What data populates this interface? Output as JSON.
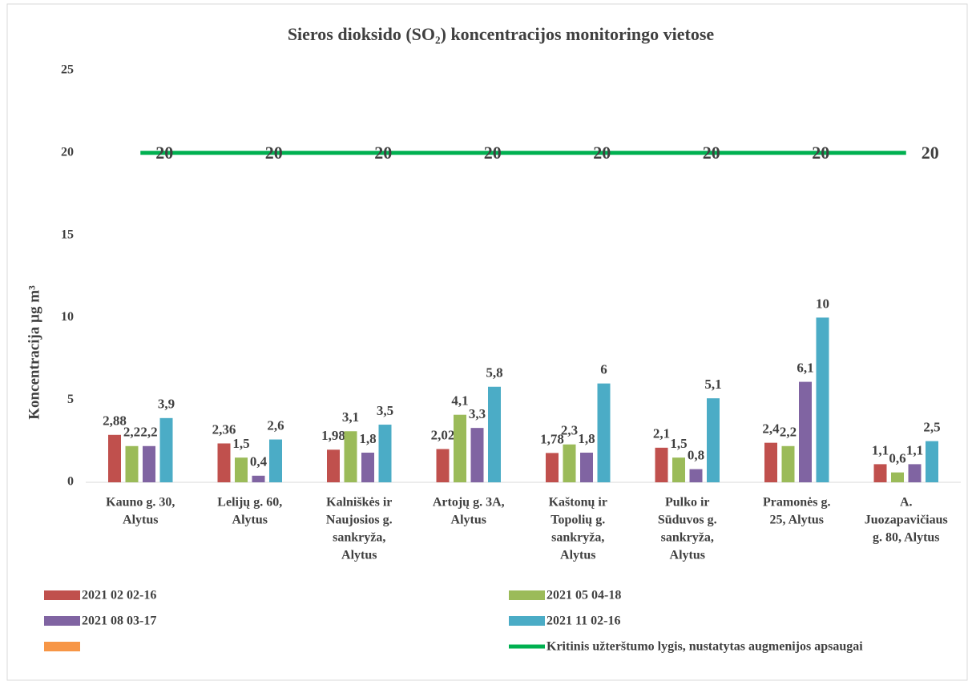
{
  "chart_data": {
    "type": "bar",
    "title": "Sieros dioksido (SO₂) koncentracijos monitoringo vietose",
    "y_label": "Koncentracija µg m³",
    "categories": [
      [
        "Kauno g. 30,",
        "Alytus"
      ],
      [
        "Lelijų g. 60,",
        "Alytus"
      ],
      [
        "Kalniškės ir",
        "Naujosios g.",
        "sankryža,",
        "Alytus"
      ],
      [
        "Artojų g. 3A,",
        "Alytus"
      ],
      [
        "Kaštonų ir",
        "Topolių g.",
        "sankryža,",
        "Alytus"
      ],
      [
        "Pulko ir",
        "Sūduvos g.",
        "sankryža,",
        "Alytus"
      ],
      [
        "Pramonės g.",
        "25, Alytus"
      ],
      [
        "A.",
        "Juozapavičiaus",
        "g. 80, Alytus"
      ]
    ],
    "series": [
      {
        "name": "2021 02 02-16",
        "color": "#C0504D",
        "values": [
          2.88,
          2.36,
          1.98,
          2.02,
          1.78,
          2.1,
          2.4,
          1.1
        ],
        "value_labels": [
          "2,88",
          "2,36",
          "1,98",
          "2,02",
          "1,78",
          "2,1",
          "2,4",
          "1,1"
        ]
      },
      {
        "name": "2021 05 04-18",
        "color": "#9BBB59",
        "values": [
          2.2,
          1.5,
          3.1,
          4.1,
          2.3,
          1.5,
          2.2,
          0.6
        ],
        "value_labels": [
          "2,2",
          "1,5",
          "3,1",
          "4,1",
          "2,3",
          "1,5",
          "2,2",
          "0,6"
        ]
      },
      {
        "name": "2021 08 03-17",
        "color": "#8064A2",
        "values": [
          2.2,
          0.4,
          1.8,
          3.3,
          1.8,
          0.8,
          6.1,
          1.1
        ],
        "value_labels": [
          "2,2",
          "0,4",
          "1,8",
          "3,3",
          "1,8",
          "0,8",
          "6,1",
          "1,1"
        ]
      },
      {
        "name": "2021 11 02-16",
        "color": "#4BACC6",
        "values": [
          3.9,
          2.6,
          3.5,
          5.8,
          6,
          5.1,
          10,
          2.5
        ],
        "value_labels": [
          "3,9",
          "2,6",
          "3,5",
          "5,8",
          "6",
          "5,1",
          "10",
          "2,5"
        ]
      },
      {
        "color": "#F79646",
        "values": [
          null,
          null,
          null,
          null,
          null,
          null,
          null,
          null
        ]
      },
      {
        "name": "Kritinis užterštumo lygis, nustatytas augmenijos apsaugai",
        "type": "line",
        "color": "#00B050",
        "values": [
          20,
          20,
          20,
          20,
          20,
          20,
          20,
          20
        ]
      }
    ],
    "ylim": [
      0,
      25
    ],
    "yticks": [
      0,
      5,
      10,
      15,
      20,
      25
    ],
    "grid": false
  }
}
